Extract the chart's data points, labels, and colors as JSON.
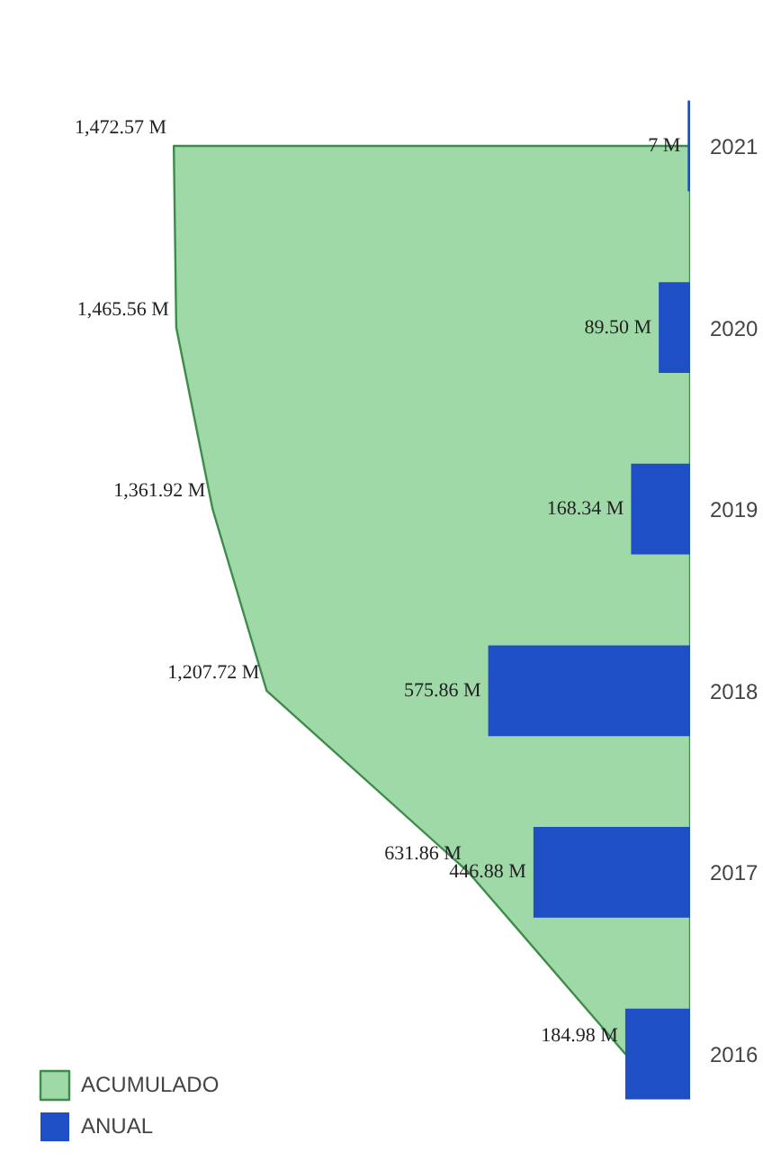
{
  "chart_data": {
    "type": "bar",
    "orientation": "horizontal",
    "categories": [
      "2021",
      "2020",
      "2019",
      "2018",
      "2017",
      "2016"
    ],
    "legend": "bottom left",
    "grid": false,
    "series": [
      {
        "name": "ACUMULADO",
        "type": "area",
        "color": "#9fd9a8",
        "values": [
          1472.57,
          1465.56,
          1361.92,
          1207.72,
          631.86,
          184.98
        ],
        "value_labels": [
          "1,472.57 M",
          "1,465.56 M",
          "1,361.92 M",
          "1,207.72 M",
          "631.86 M",
          "184.98 M"
        ]
      },
      {
        "name": "ANUAL",
        "color": "#1f4fc4",
        "values": [
          7,
          89.5,
          168.34,
          575.86,
          446.88,
          184.98
        ],
        "value_labels": [
          "7 M",
          "89.50 M",
          "168.34 M",
          "575.86 M",
          "446.88 M",
          null
        ]
      }
    ]
  }
}
